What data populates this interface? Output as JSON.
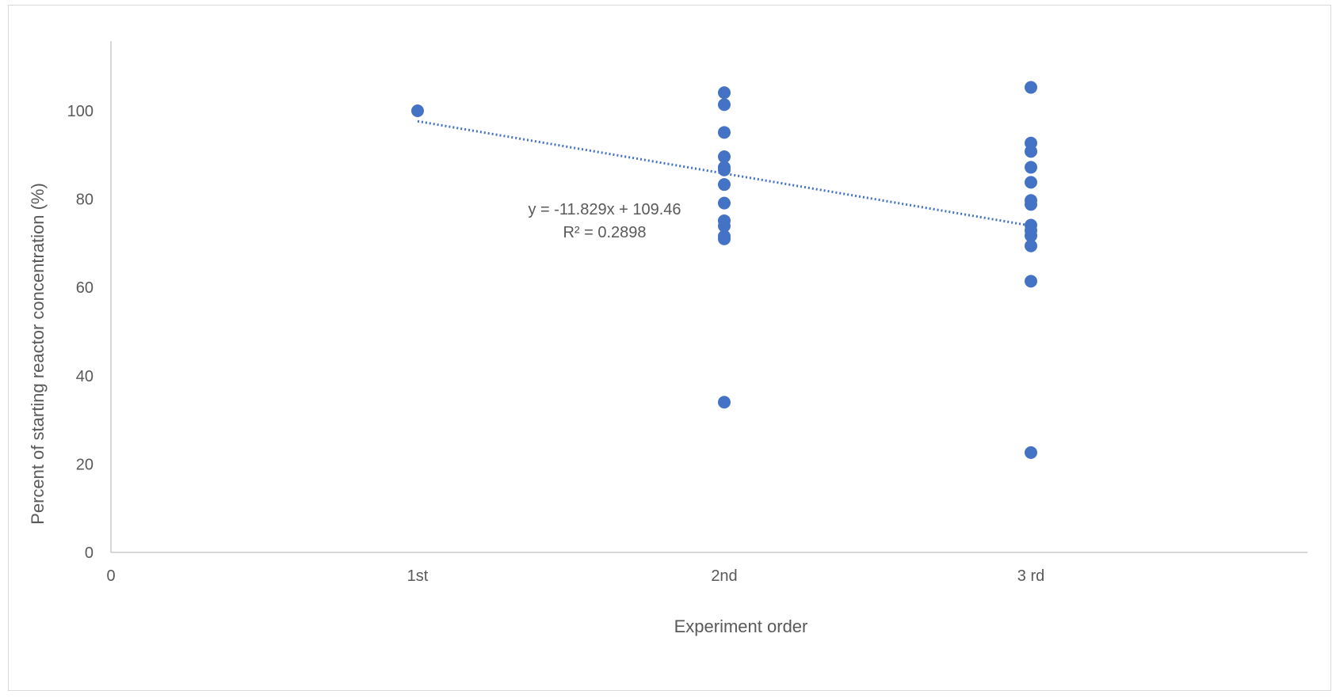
{
  "chart_data": {
    "type": "scatter",
    "title": "",
    "xlabel": "Experiment order",
    "ylabel": "Percent of starting reactor concentration (%)",
    "xlim": [
      0,
      3.9
    ],
    "ylim": [
      0,
      120
    ],
    "x_ticks": [
      {
        "value": 0,
        "label": "0"
      },
      {
        "value": 1,
        "label": "1st"
      },
      {
        "value": 2,
        "label": "2nd"
      },
      {
        "value": 3,
        "label": "3 rd"
      }
    ],
    "y_ticks": [
      0,
      20,
      40,
      60,
      80,
      100
    ],
    "grid": false,
    "legend": "none",
    "series": [
      {
        "marker_color": "#4472C4",
        "points": [
          {
            "x": 1,
            "y": 100
          },
          {
            "x": 2,
            "y": 104.1
          },
          {
            "x": 2,
            "y": 101.4
          },
          {
            "x": 2,
            "y": 95.1
          },
          {
            "x": 2,
            "y": 89.6
          },
          {
            "x": 2,
            "y": 87.2
          },
          {
            "x": 2,
            "y": 86.6
          },
          {
            "x": 2,
            "y": 83.3
          },
          {
            "x": 2,
            "y": 79.1
          },
          {
            "x": 2,
            "y": 75.1
          },
          {
            "x": 2,
            "y": 73.9
          },
          {
            "x": 2,
            "y": 71.6
          },
          {
            "x": 2,
            "y": 71.0
          },
          {
            "x": 2,
            "y": 34.0
          },
          {
            "x": 3,
            "y": 105.3
          },
          {
            "x": 3,
            "y": 92.7
          },
          {
            "x": 3,
            "y": 90.8
          },
          {
            "x": 3,
            "y": 87.2
          },
          {
            "x": 3,
            "y": 83.8
          },
          {
            "x": 3,
            "y": 79.7
          },
          {
            "x": 3,
            "y": 78.8
          },
          {
            "x": 3,
            "y": 74.1
          },
          {
            "x": 3,
            "y": 72.9
          },
          {
            "x": 3,
            "y": 71.7
          },
          {
            "x": 3,
            "y": 69.4
          },
          {
            "x": 3,
            "y": 61.4
          },
          {
            "x": 3,
            "y": 22.6
          }
        ]
      }
    ],
    "trendline": {
      "type": "linear",
      "slope": -11.829,
      "intercept": 109.46,
      "x_range": [
        1,
        3
      ],
      "color": "#4472C4",
      "style": "dotted",
      "equation_label": "y = -11.829x + 109.46",
      "r2_label": "R² = 0.2898"
    },
    "axis_color": "#BFBFBF"
  }
}
